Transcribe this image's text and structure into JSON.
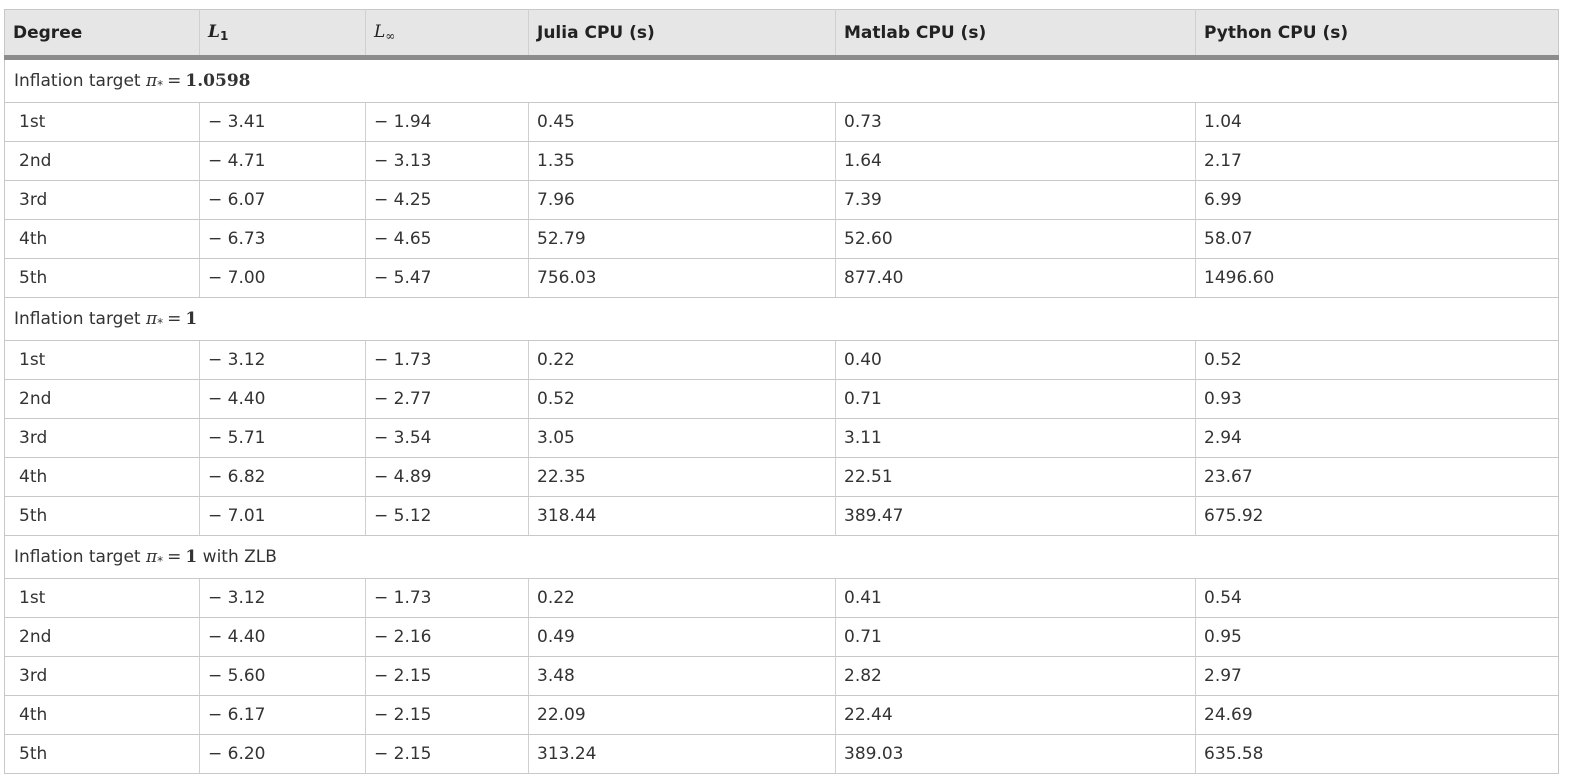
{
  "table": {
    "headers": {
      "degree": "Degree",
      "l1_letter": "L",
      "l1_sub": "1",
      "linf_letter": "L",
      "linf_sub": "∞",
      "julia": "Julia CPU (s)",
      "matlab": "Matlab CPU (s)",
      "python": "Python CPU (s)"
    },
    "sections": [
      {
        "label_prefix": "Inflation target",
        "symbol": "π",
        "symbol_sub": "*",
        "operator": "=",
        "value": "1.0598",
        "label_suffix": "",
        "rows": [
          [
            "1st",
            "− 3.41",
            "− 1.94",
            "0.45",
            "0.73",
            "1.04"
          ],
          [
            "2nd",
            "− 4.71",
            "− 3.13",
            "1.35",
            "1.64",
            "2.17"
          ],
          [
            "3rd",
            "− 6.07",
            "− 4.25",
            "7.96",
            "7.39",
            "6.99"
          ],
          [
            "4th",
            "− 6.73",
            "− 4.65",
            "52.79",
            "52.60",
            "58.07"
          ],
          [
            "5th",
            "− 7.00",
            "− 5.47",
            "756.03",
            "877.40",
            "1496.60"
          ]
        ]
      },
      {
        "label_prefix": "Inflation target",
        "symbol": "π",
        "symbol_sub": "*",
        "operator": "=",
        "value": "1",
        "label_suffix": "",
        "rows": [
          [
            "1st",
            "− 3.12",
            "− 1.73",
            "0.22",
            "0.40",
            "0.52"
          ],
          [
            "2nd",
            "− 4.40",
            "− 2.77",
            "0.52",
            "0.71",
            "0.93"
          ],
          [
            "3rd",
            "− 5.71",
            "− 3.54",
            "3.05",
            "3.11",
            "2.94"
          ],
          [
            "4th",
            "− 6.82",
            "− 4.89",
            "22.35",
            "22.51",
            "23.67"
          ],
          [
            "5th",
            "− 7.01",
            "− 5.12",
            "318.44",
            "389.47",
            "675.92"
          ]
        ]
      },
      {
        "label_prefix": "Inflation target",
        "symbol": "π",
        "symbol_sub": "*",
        "operator": "=",
        "value": "1",
        "label_suffix": "with ZLB",
        "rows": [
          [
            "1st",
            "− 3.12",
            "− 1.73",
            "0.22",
            "0.41",
            "0.54"
          ],
          [
            "2nd",
            "− 4.40",
            "− 2.16",
            "0.49",
            "0.71",
            "0.95"
          ],
          [
            "3rd",
            "− 5.60",
            "− 2.15",
            "3.48",
            "2.82",
            "2.97"
          ],
          [
            "4th",
            "− 6.17",
            "− 2.15",
            "22.09",
            "22.44",
            "24.69"
          ],
          [
            "5th",
            "− 6.20",
            "− 2.15",
            "313.24",
            "389.03",
            "635.58"
          ]
        ]
      }
    ]
  }
}
